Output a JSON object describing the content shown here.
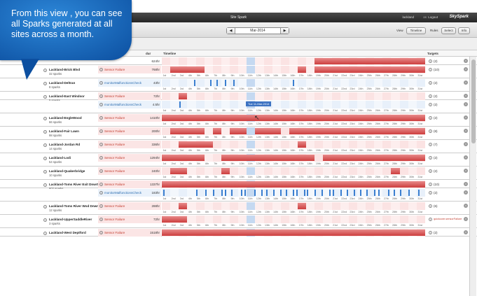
{
  "app": {
    "title": "Site Spark",
    "user": "lackland",
    "as_label": "as",
    "logout": "Logout",
    "brand": "SkySpark"
  },
  "toolbar": {
    "prev": "◀",
    "next": "▶",
    "month": "Mar-2014",
    "view_label": "View",
    "view_value": "Timeline",
    "rules_label": "Rules",
    "select": "Select",
    "info": "Info"
  },
  "header": {
    "dur": "dur",
    "timeline": "Timeline",
    "targets": "Targets"
  },
  "callout": {
    "text": "From this view , you can see all Sparks generated at all sites across a month."
  },
  "tooltip": {
    "text": "Tue 11-Mar-2014"
  },
  "days": [
    "1st",
    "2nd",
    "3rd",
    "4th",
    "5th",
    "6th",
    "7th",
    "8th",
    "9th",
    "10th",
    "11th",
    "12th",
    "13th",
    "14th",
    "15th",
    "16th",
    "17th",
    "18th",
    "19th",
    "20th",
    "21st",
    "22nd",
    "23rd",
    "24th",
    "25th",
    "26th",
    "27th",
    "28th",
    "29th",
    "30th",
    "31st"
  ],
  "rows": [
    {
      "site": "",
      "sparks": "",
      "rule": "",
      "dur": "624hr",
      "target": "(2)",
      "bars": [
        [
          18,
          30
        ]
      ],
      "ticks": []
    },
    {
      "site": "Lackland-Brick Blvd",
      "sparks": "32 sparks",
      "rule": "Sensor Failure",
      "dur": "768hr",
      "target": "(10)",
      "bars": [
        [
          1,
          4
        ],
        [
          16,
          16
        ],
        [
          18,
          30
        ]
      ],
      "ticks": [],
      "days": true
    },
    {
      "site": "Lackland-Deltran",
      "sparks": "8 sparks",
      "rule": "monitorMalfunctionsCheck",
      "dur": "43hr",
      "target": "(2)",
      "bars": [],
      "ticks": [
        3.8,
        5.7,
        6.4,
        7.4,
        8.4,
        15.4
      ],
      "days": true
    },
    {
      "site": "Lackland-East Windsor",
      "sparks": "5 sparks",
      "rule": "Sensor Failure",
      "dur": "72hr",
      "target": "(2)",
      "bars": [
        [
          2,
          2
        ]
      ],
      "ticks": []
    },
    {
      "site": "",
      "sparks": "",
      "rule": "monitorMalfunctionsCheck",
      "dur": "4.5hr",
      "target": "(2)",
      "bars": [],
      "ticks": [
        2.1
      ],
      "days": true
    },
    {
      "site": "Lackland-EngleWood",
      "sparks": "66 sparks",
      "rule": "Sensor Failure",
      "dur": "1410hr",
      "target": "(2)",
      "bars": [
        [
          0,
          30
        ]
      ],
      "ticks": [],
      "days": true
    },
    {
      "site": "Lackland-Fair Lawn",
      "sparks": "98 sparks",
      "rule": "Sensor Failure",
      "dur": "200hr",
      "target": "(8)",
      "bars": [
        [
          1,
          4
        ],
        [
          6,
          6
        ],
        [
          8,
          9
        ],
        [
          11,
          13
        ],
        [
          15,
          30
        ]
      ],
      "ticks": [],
      "days": true
    },
    {
      "site": "Lackland-Jordan Rd",
      "sparks": "14 sparks",
      "rule": "Sensor Failure",
      "dur": "336hr",
      "target": "(7)",
      "bars": [
        [
          2,
          5
        ],
        [
          16,
          16
        ]
      ],
      "ticks": [],
      "days": true
    },
    {
      "site": "Lackland-Lodi",
      "sparks": "54 sparks",
      "rule": "Sensor Failure",
      "dur": "1294hr",
      "target": "(2)",
      "bars": [
        [
          0,
          4
        ],
        [
          7,
          17
        ],
        [
          19,
          30
        ]
      ],
      "ticks": [],
      "days": true
    },
    {
      "site": "Lackland-Quakerbridge",
      "sparks": "10 sparks",
      "rule": "Sensor Failure",
      "dur": "240hr",
      "target": "(2)",
      "bars": [
        [
          1,
          2
        ],
        [
          7,
          7
        ],
        [
          27,
          27
        ]
      ],
      "ticks": [],
      "days": true
    },
    {
      "site": "Lackland-Toms River Exit Dnwrt 3",
      "sparks": "802 sparks",
      "rule": "Sensor Failure",
      "dur": "1337hr",
      "target": "(10)",
      "bars": [
        [
          0,
          30
        ]
      ],
      "ticks": []
    },
    {
      "site": "",
      "sparks": "",
      "rule": "monitorMalfunctionsCheck",
      "dur": "183hr",
      "target": "(2)",
      "bars": [],
      "ticks": [
        0.2,
        4.0,
        5.1,
        6.0,
        7.0,
        7.4,
        8.2,
        9.3,
        9.7,
        10.9,
        11.7,
        12.3,
        13.1,
        13.9,
        14.6,
        15.4,
        15.8,
        16.7,
        17.1,
        18.0,
        18.8,
        19.7,
        20.1,
        21.0,
        21.8,
        22.6,
        23.3,
        24.1,
        25.0,
        25.5,
        26.6,
        27.3,
        28.0,
        29.0,
        30.2
      ],
      "days": true
    },
    {
      "site": "Lackland-Toms River Wod Dnwrt 1",
      "sparks": "12 sparks",
      "rule": "Sensor Failure",
      "dur": "288hr",
      "target": "(6)",
      "bars": [
        [
          2,
          2
        ],
        [
          16,
          16
        ]
      ],
      "ticks": [],
      "days": true
    },
    {
      "site": "Lackland-UpperSaddleRiver",
      "sparks": "3 sparks",
      "rule": "Sensor Failure",
      "dur": "72hr",
      "target": "quickcore.sensorFailure",
      "bars": [
        [
          0,
          2
        ]
      ],
      "ticks": [],
      "days": true
    },
    {
      "site": "Lackland-West Deptford",
      "sparks": "",
      "rule": "Sensor Failure",
      "dur": "1518hr",
      "target": "(2)",
      "bars": [
        [
          0,
          30
        ]
      ],
      "ticks": []
    }
  ]
}
